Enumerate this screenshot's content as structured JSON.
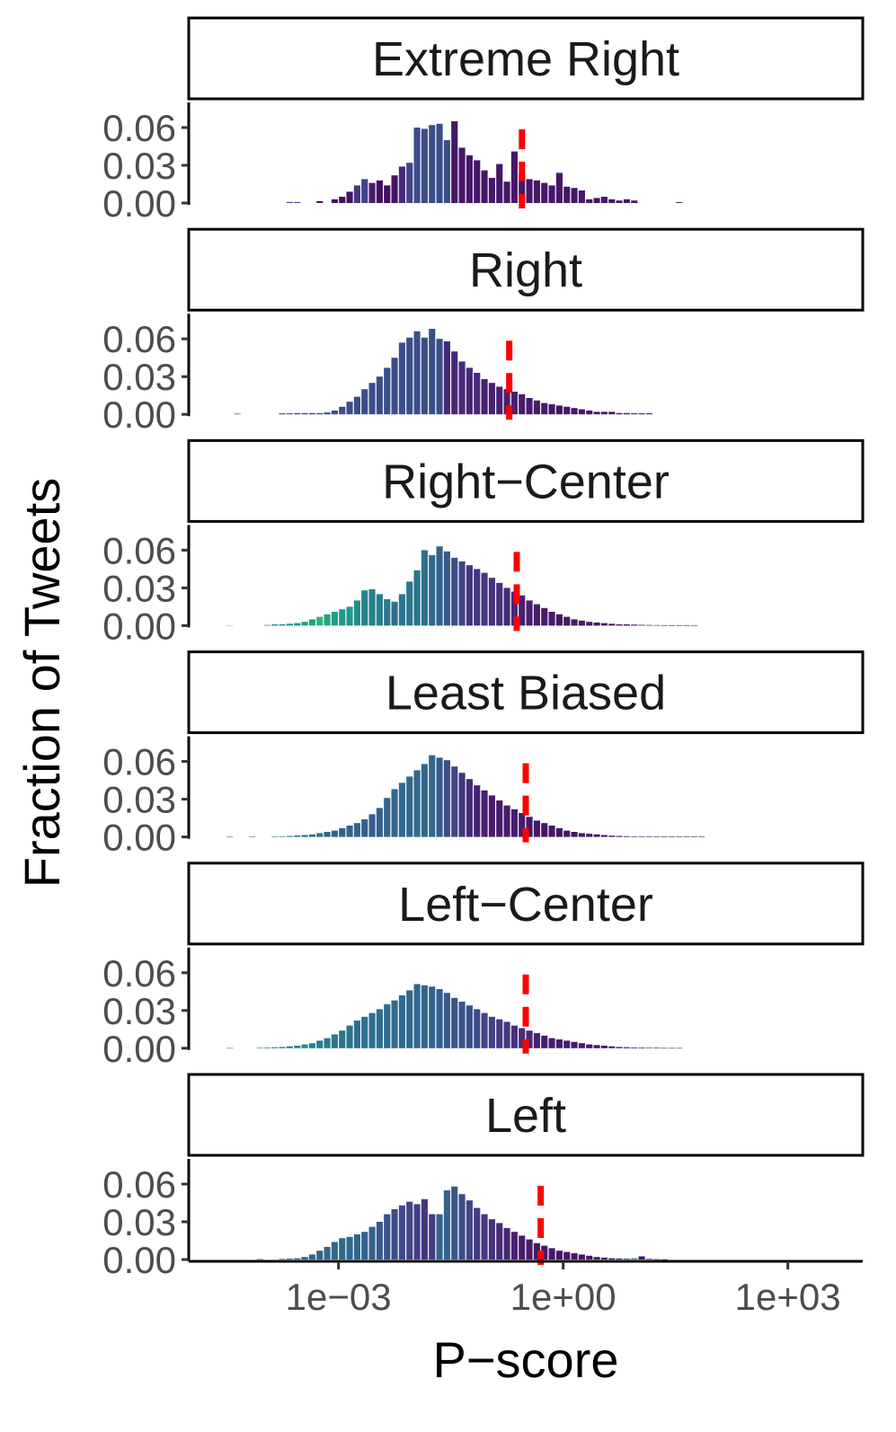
{
  "chart_data": {
    "type": "bar",
    "title": "",
    "xlabel": "P−score",
    "ylabel": "Fraction of Tweets",
    "x_scale": "log10",
    "x_ticks": [
      {
        "value": 0.001,
        "label": "1e−03"
      },
      {
        "value": 1,
        "label": "1e+00"
      },
      {
        "value": 1000,
        "label": "1e+03"
      }
    ],
    "y_ticks": [
      {
        "value": 0.0,
        "label": "0.00"
      },
      {
        "value": 0.03,
        "label": "0.03"
      },
      {
        "value": 0.06,
        "label": "0.06"
      }
    ],
    "ylim": [
      0,
      0.08
    ],
    "bin_log10_start": -5.0,
    "bin_log10_width": 0.1,
    "median_line_color": "#ff0000",
    "fill_scale": "viridis",
    "panels": [
      {
        "name": "Extreme Right",
        "median_log10": -0.55,
        "values": [
          0,
          0,
          0,
          0,
          0,
          0,
          0,
          0,
          0,
          0,
          0,
          0,
          0,
          0.0008,
          0.0008,
          0,
          0,
          0.0015,
          0,
          0.003,
          0.005,
          0.009,
          0.014,
          0.019,
          0.016,
          0.018,
          0.014,
          0.022,
          0.029,
          0.032,
          0.06,
          0.059,
          0.062,
          0.063,
          0.05,
          0.065,
          0.044,
          0.038,
          0.034,
          0.026,
          0.02,
          0.031,
          0.017,
          0.041,
          0.023,
          0.019,
          0.018,
          0.016,
          0.014,
          0.024,
          0.013,
          0.012,
          0.01,
          0.003,
          0.004,
          0.005,
          0.003,
          0.002,
          0.003,
          0.002,
          0,
          0,
          0,
          0,
          0,
          0.0008
        ],
        "fills": [
          0,
          0,
          0,
          0,
          0,
          0,
          0,
          0,
          0,
          0,
          0,
          0,
          0,
          0.3,
          0.3,
          0,
          0,
          0.05,
          0,
          0.05,
          0.05,
          0.06,
          0.2,
          0.25,
          0.1,
          0.05,
          0.05,
          0.06,
          0.15,
          0.25,
          0.3,
          0.3,
          0.3,
          0.3,
          0.3,
          0.08,
          0.08,
          0.08,
          0.08,
          0.08,
          0.08,
          0.08,
          0.08,
          0.08,
          0.08,
          0.08,
          0.08,
          0.08,
          0.08,
          0.08,
          0.08,
          0.08,
          0.08,
          0.08,
          0.08,
          0.08,
          0.08,
          0.08,
          0.08,
          0.08,
          0,
          0,
          0,
          0,
          0,
          0.2
        ]
      },
      {
        "name": "Right",
        "median_log10": -0.72,
        "values": [
          0,
          0,
          0,
          0,
          0,
          0,
          0.0005,
          0,
          0,
          0,
          0,
          0,
          0.0008,
          0.0008,
          0.001,
          0.001,
          0.001,
          0.001,
          0.0015,
          0.003,
          0.006,
          0.01,
          0.014,
          0.02,
          0.025,
          0.03,
          0.037,
          0.045,
          0.057,
          0.061,
          0.066,
          0.061,
          0.068,
          0.06,
          0.058,
          0.05,
          0.042,
          0.037,
          0.033,
          0.028,
          0.025,
          0.022,
          0.02,
          0.018,
          0.016,
          0.013,
          0.011,
          0.009,
          0.008,
          0.007,
          0.006,
          0.005,
          0.004,
          0.003,
          0.002,
          0.002,
          0.002,
          0.001,
          0.001,
          0.0008,
          0.0008,
          0.0008
        ],
        "fills": [
          0,
          0,
          0,
          0,
          0,
          0,
          0.2,
          0,
          0,
          0,
          0,
          0,
          0.3,
          0.3,
          0.3,
          0.3,
          0.3,
          0.3,
          0.3,
          0.3,
          0.3,
          0.3,
          0.3,
          0.3,
          0.3,
          0.3,
          0.3,
          0.3,
          0.3,
          0.3,
          0.3,
          0.3,
          0.3,
          0.3,
          0.15,
          0.15,
          0.15,
          0.15,
          0.15,
          0.12,
          0.12,
          0.12,
          0.12,
          0.12,
          0.1,
          0.1,
          0.1,
          0.1,
          0.08,
          0.08,
          0.08,
          0.08,
          0.08,
          0.08,
          0.08,
          0.08,
          0.08,
          0.08,
          0.08,
          0.08,
          0.08,
          0.08
        ]
      },
      {
        "name": "Right−Center",
        "median_log10": -0.62,
        "values": [
          0,
          0,
          0,
          0,
          0,
          0.0003,
          0,
          0,
          0,
          0,
          0.0005,
          0.001,
          0.001,
          0.0015,
          0.002,
          0.003,
          0.005,
          0.007,
          0.009,
          0.011,
          0.013,
          0.015,
          0.02,
          0.028,
          0.029,
          0.025,
          0.021,
          0.019,
          0.025,
          0.035,
          0.044,
          0.06,
          0.056,
          0.063,
          0.059,
          0.054,
          0.051,
          0.048,
          0.045,
          0.042,
          0.038,
          0.034,
          0.03,
          0.027,
          0.024,
          0.02,
          0.017,
          0.014,
          0.011,
          0.009,
          0.007,
          0.005,
          0.004,
          0.003,
          0.0025,
          0.002,
          0.0015,
          0.001,
          0.001,
          0.0008,
          0.0006,
          0.0005,
          0.0004,
          0.0003,
          0.0002,
          0.0002,
          0.0002,
          0.0002
        ],
        "fills": [
          0,
          0,
          0,
          0,
          0,
          0.9,
          0,
          0,
          0,
          0,
          0.6,
          0.6,
          0.6,
          0.62,
          0.65,
          0.68,
          0.72,
          0.78,
          0.74,
          0.7,
          0.68,
          0.66,
          0.62,
          0.55,
          0.55,
          0.52,
          0.5,
          0.45,
          0.48,
          0.5,
          0.48,
          0.45,
          0.42,
          0.4,
          0.35,
          0.3,
          0.25,
          0.2,
          0.2,
          0.2,
          0.18,
          0.18,
          0.15,
          0.15,
          0.12,
          0.12,
          0.1,
          0.1,
          0.1,
          0.08,
          0.08,
          0.08,
          0.08,
          0.08,
          0.08,
          0.08,
          0.08,
          0.08,
          0.08,
          0.08,
          0.08,
          0.08,
          0.08,
          0.08,
          0.08,
          0.08,
          0.08,
          0.2
        ]
      },
      {
        "name": "Least Biased",
        "median_log10": -0.5,
        "values": [
          0,
          0,
          0,
          0,
          0,
          0.0002,
          0,
          0,
          0.0002,
          0,
          0,
          0.0003,
          0.0005,
          0.0008,
          0.0012,
          0.0015,
          0.002,
          0.003,
          0.004,
          0.005,
          0.007,
          0.009,
          0.011,
          0.014,
          0.018,
          0.023,
          0.031,
          0.038,
          0.043,
          0.048,
          0.053,
          0.058,
          0.065,
          0.063,
          0.061,
          0.056,
          0.051,
          0.046,
          0.041,
          0.037,
          0.033,
          0.029,
          0.025,
          0.022,
          0.019,
          0.016,
          0.013,
          0.011,
          0.009,
          0.007,
          0.005,
          0.004,
          0.003,
          0.0025,
          0.002,
          0.0015,
          0.001,
          0.0008,
          0.0006,
          0.0005,
          0.0004,
          0.0003,
          0.0002,
          0.0002,
          0.0002,
          0.0002,
          0.0002,
          0.0002,
          0.0002
        ],
        "fills": [
          0,
          0,
          0,
          0,
          0,
          0.5,
          0,
          0,
          0.5,
          0,
          0,
          0.55,
          0.5,
          0.5,
          0.5,
          0.45,
          0.45,
          0.45,
          0.42,
          0.42,
          0.4,
          0.4,
          0.4,
          0.38,
          0.38,
          0.4,
          0.4,
          0.42,
          0.42,
          0.42,
          0.42,
          0.42,
          0.42,
          0.35,
          0.3,
          0.25,
          0.2,
          0.15,
          0.12,
          0.12,
          0.1,
          0.1,
          0.1,
          0.1,
          0.1,
          0.08,
          0.08,
          0.08,
          0.08,
          0.08,
          0.08,
          0.08,
          0.08,
          0.08,
          0.08,
          0.08,
          0.08,
          0.08,
          0.08,
          0.08,
          0.08,
          0.08,
          0.08,
          0.08,
          0.08,
          0.08,
          0.08,
          0.08,
          0.08
        ]
      },
      {
        "name": "Left−Center",
        "median_log10": -0.5,
        "values": [
          0,
          0,
          0,
          0,
          0,
          0.0002,
          0,
          0,
          0,
          0.0003,
          0.0005,
          0.0008,
          0.001,
          0.0015,
          0.002,
          0.003,
          0.004,
          0.006,
          0.008,
          0.011,
          0.014,
          0.018,
          0.022,
          0.025,
          0.028,
          0.031,
          0.035,
          0.038,
          0.042,
          0.046,
          0.051,
          0.05,
          0.049,
          0.047,
          0.044,
          0.04,
          0.037,
          0.034,
          0.031,
          0.028,
          0.025,
          0.023,
          0.021,
          0.018,
          0.016,
          0.014,
          0.012,
          0.01,
          0.008,
          0.007,
          0.006,
          0.005,
          0.004,
          0.003,
          0.0025,
          0.002,
          0.0015,
          0.001,
          0.0008,
          0.0006,
          0.0005,
          0.0004,
          0.0003,
          0.0002,
          0.0002,
          0.0002
        ],
        "fills": [
          0,
          0,
          0,
          0,
          0,
          0.5,
          0,
          0,
          0,
          0.5,
          0.5,
          0.5,
          0.5,
          0.5,
          0.55,
          0.6,
          0.55,
          0.52,
          0.5,
          0.5,
          0.48,
          0.48,
          0.46,
          0.46,
          0.45,
          0.45,
          0.44,
          0.44,
          0.43,
          0.43,
          0.42,
          0.42,
          0.4,
          0.38,
          0.36,
          0.34,
          0.32,
          0.3,
          0.28,
          0.26,
          0.24,
          0.22,
          0.2,
          0.18,
          0.16,
          0.14,
          0.12,
          0.1,
          0.1,
          0.1,
          0.1,
          0.1,
          0.1,
          0.08,
          0.08,
          0.08,
          0.08,
          0.08,
          0.08,
          0.08,
          0.08,
          0.08,
          0.08,
          0.08,
          0.08,
          0.08
        ]
      },
      {
        "name": "Left",
        "median_log10": -0.3,
        "values": [
          0,
          0,
          0,
          0,
          0,
          0,
          0,
          0,
          0,
          0.0003,
          0,
          0,
          0.0005,
          0.0008,
          0.001,
          0.002,
          0.004,
          0.007,
          0.01,
          0.014,
          0.017,
          0.018,
          0.02,
          0.022,
          0.026,
          0.03,
          0.036,
          0.04,
          0.043,
          0.046,
          0.044,
          0.048,
          0.036,
          0.036,
          0.055,
          0.058,
          0.052,
          0.047,
          0.041,
          0.036,
          0.032,
          0.029,
          0.025,
          0.022,
          0.019,
          0.016,
          0.013,
          0.011,
          0.009,
          0.007,
          0.006,
          0.005,
          0.004,
          0.003,
          0.002,
          0.0015,
          0.001,
          0.0008,
          0.0006,
          0.001,
          0.0025,
          0.0005,
          0.0003,
          0.0002
        ],
        "fills": [
          0,
          0,
          0,
          0,
          0,
          0,
          0,
          0,
          0,
          0.3,
          0,
          0,
          0.4,
          0.4,
          0.4,
          0.4,
          0.4,
          0.4,
          0.42,
          0.42,
          0.42,
          0.42,
          0.42,
          0.4,
          0.4,
          0.35,
          0.32,
          0.3,
          0.28,
          0.26,
          0.24,
          0.2,
          0.22,
          0.4,
          0.4,
          0.35,
          0.3,
          0.25,
          0.22,
          0.2,
          0.18,
          0.16,
          0.14,
          0.12,
          0.1,
          0.1,
          0.08,
          0.08,
          0.08,
          0.08,
          0.08,
          0.08,
          0.08,
          0.08,
          0.08,
          0.08,
          0.08,
          0.08,
          0.08,
          0.65,
          0.08,
          0.08,
          0.08,
          0.08
        ]
      }
    ]
  }
}
